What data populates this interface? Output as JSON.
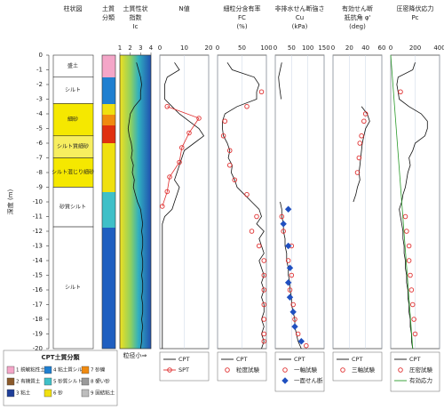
{
  "depth_axis": {
    "label": "深度 (m)",
    "ylim": [
      0,
      -20
    ],
    "yticks": [
      0,
      -1,
      -2,
      -3,
      -4,
      -5,
      -6,
      -7,
      -8,
      -9,
      -10,
      -11,
      -12,
      -13,
      -14,
      -15,
      -16,
      -17,
      -18,
      -19,
      -20
    ]
  },
  "depth": [
    0,
    -0.5,
    -1,
    -1.5,
    -2,
    -2.5,
    -3,
    -3.5,
    -4,
    -4.5,
    -5,
    -5.5,
    -6,
    -6.5,
    -7,
    -7.5,
    -8,
    -8.5,
    -9,
    -9.5,
    -10,
    -10.5,
    -11,
    -11.5,
    -12,
    -12.5,
    -13,
    -13.5,
    -14,
    -14.5,
    -15,
    -15.5,
    -16,
    -16.5,
    -17,
    -17.5,
    -18,
    -18.5,
    -19,
    -19.5,
    -20
  ],
  "column_title": "柱状図",
  "class_title": [
    "土質",
    "分類"
  ],
  "strata": [
    {
      "name": "盛土",
      "top": 0,
      "bottom": -1.5,
      "color": "#ffffff"
    },
    {
      "name": "シルト",
      "top": -1.5,
      "bottom": -3.3,
      "color": "#ffffff"
    },
    {
      "name": "細砂",
      "top": -3.3,
      "bottom": -5.5,
      "color": "#f5e800"
    },
    {
      "name": "シルト質細砂",
      "top": -5.5,
      "bottom": -7,
      "color": "#f7ee60"
    },
    {
      "name": "シルト混じり細砂",
      "top": -7,
      "bottom": -9,
      "color": "#f5e800"
    },
    {
      "name": "砂質シルト",
      "top": -9,
      "bottom": -11.7,
      "color": "#ffffff"
    },
    {
      "name": "シルト",
      "top": -11.7,
      "bottom": -20,
      "color": "#ffffff"
    }
  ],
  "ic_note": "粒径小⇒",
  "soil_legend": {
    "title": "CPT土質分類",
    "items": [
      {
        "label": "1 鋭敏粘性土",
        "color": "#f4a6c8"
      },
      {
        "label": "2 有機質土",
        "color": "#8b5a2b"
      },
      {
        "label": "3 粘土",
        "color": "#1f3f9a"
      },
      {
        "label": "4 粘土質シルト",
        "color": "#1f7fd0"
      },
      {
        "label": "5 砂質シルト",
        "color": "#3fc0c8"
      },
      {
        "label": "6 砂",
        "color": "#f0e010"
      },
      {
        "label": "7 砂礫",
        "color": "#f08a10"
      },
      {
        "label": "8 硬い砂",
        "color": "#9a9a9a"
      },
      {
        "label": "9 固結粘土",
        "color": "#bdbdbd"
      }
    ]
  },
  "chart_data": [
    {
      "type": "line",
      "title": [
        "土質性状",
        "指数",
        "Ic"
      ],
      "xlim": [
        1,
        4
      ],
      "xticks": [
        1,
        2,
        3,
        4
      ],
      "grid": false,
      "background": true,
      "series": [
        {
          "color": "#111111",
          "mode": "line",
          "values": [
            null,
            2.6,
            2.8,
            3.0,
            3.1,
            3.0,
            3.0,
            2.4,
            2.0,
            1.9,
            1.8,
            1.9,
            2.1,
            2.2,
            2.1,
            2.3,
            2.2,
            2.4,
            2.3,
            2.5,
            2.7,
            3.0,
            3.1,
            3.2,
            3.1,
            3.2,
            3.2,
            3.1,
            3.2,
            3.2,
            3.1,
            3.2,
            3.2,
            3.1,
            3.2,
            3.2,
            3.1,
            3.2,
            3.1,
            3.1,
            3.0
          ]
        }
      ]
    },
    {
      "type": "line",
      "title": [
        "N値"
      ],
      "xlim": [
        0,
        20
      ],
      "xticks": [
        0,
        10,
        20
      ],
      "grid": true,
      "series": [
        {
          "name": "CPT",
          "color": "#111111",
          "mode": "line",
          "values": [
            null,
            6,
            8,
            3,
            2,
            2,
            2,
            5,
            8,
            12,
            16,
            18,
            14,
            10,
            9,
            8,
            7,
            6,
            8,
            7,
            6,
            5,
            2,
            1,
            1,
            1,
            1,
            1,
            1,
            1,
            1,
            1,
            1,
            1,
            1,
            1,
            1,
            1,
            1,
            1,
            1
          ]
        },
        {
          "name": "SPT",
          "color": "#e03030",
          "mode": "lines+markers",
          "marker": "circle",
          "depth": [
            -3.5,
            -4.3,
            -5.3,
            -6.3,
            -7.3,
            -8.3,
            -9.3,
            -10.3
          ],
          "values": [
            3,
            16,
            12,
            9,
            8,
            4,
            3,
            1
          ]
        }
      ]
    },
    {
      "type": "line",
      "title": [
        "細粒分含有率",
        "FC",
        "(%)"
      ],
      "xlim": [
        0,
        100
      ],
      "xticks": [
        0,
        50,
        100
      ],
      "grid": true,
      "series": [
        {
          "name": "CPT",
          "color": "#111111",
          "mode": "line",
          "values": [
            null,
            20,
            30,
            75,
            85,
            80,
            80,
            40,
            15,
            10,
            10,
            12,
            20,
            25,
            22,
            30,
            28,
            35,
            40,
            55,
            70,
            85,
            90,
            80,
            95,
            85,
            90,
            95,
            85,
            90,
            95,
            90,
            95,
            90,
            95,
            95,
            90,
            95,
            90,
            95,
            90
          ]
        },
        {
          "name": "粒度試験",
          "color": "#e03030",
          "mode": "markers",
          "marker": "circle",
          "depth": [
            -2.5,
            -3.5,
            -4.5,
            -5.5,
            -6.5,
            -7.5,
            -8.5,
            -9.5,
            -11,
            -12,
            -13,
            -14,
            -15,
            -16,
            -17,
            -18,
            -19,
            -19.5
          ],
          "values": [
            90,
            60,
            15,
            12,
            25,
            25,
            35,
            60,
            80,
            70,
            85,
            95,
            95,
            95,
            95,
            95,
            95,
            95
          ]
        }
      ]
    },
    {
      "type": "line",
      "title": [
        "非排水せん断強さ",
        "Cu",
        "(kPa)"
      ],
      "xlim": [
        0,
        150
      ],
      "xticks": [
        0,
        50,
        100,
        150
      ],
      "grid": true,
      "series": [
        {
          "name": "CPT",
          "color": "#111111",
          "mode": "line",
          "values": [
            null,
            20,
            15,
            10,
            12,
            15,
            18,
            null,
            null,
            null,
            null,
            null,
            null,
            null,
            null,
            null,
            null,
            null,
            null,
            null,
            15,
            20,
            20,
            25,
            25,
            30,
            30,
            35,
            35,
            40,
            40,
            45,
            45,
            50,
            50,
            55,
            60,
            60,
            65,
            70,
            80
          ]
        },
        {
          "name": "一軸試験",
          "color": "#e03030",
          "mode": "markers",
          "marker": "circle",
          "depth": [
            -11,
            -12,
            -13,
            -14,
            -15,
            -16,
            -17,
            -18,
            -19,
            -19.8
          ],
          "values": [
            20,
            25,
            50,
            40,
            50,
            45,
            55,
            60,
            70,
            95
          ]
        },
        {
          "name": "一面せん断",
          "color": "#2050c0",
          "mode": "markers",
          "marker": "diamond",
          "depth": [
            -10.5,
            -11.5,
            -13,
            -14.5,
            -15.5,
            -16.5,
            -17.5,
            -18.5,
            -19.5
          ],
          "values": [
            40,
            25,
            40,
            45,
            40,
            45,
            55,
            60,
            80
          ]
        }
      ]
    },
    {
      "type": "line",
      "title": [
        "有効せん断",
        "抵抗角 φ'",
        "(deg)"
      ],
      "xlim": [
        0,
        60
      ],
      "xticks": [
        0,
        20,
        40,
        60
      ],
      "grid": true,
      "series": [
        {
          "name": "CPT",
          "color": "#111111",
          "mode": "line",
          "values": [
            null,
            null,
            null,
            null,
            null,
            null,
            null,
            35,
            42,
            45,
            40,
            38,
            36,
            35,
            34,
            33,
            32,
            33,
            30,
            28,
            25,
            null,
            null,
            null,
            null,
            null,
            null,
            null,
            null,
            null,
            null,
            null,
            null,
            null,
            null,
            null,
            null,
            null,
            null,
            null,
            null
          ]
        },
        {
          "name": "三軸試験",
          "color": "#e03030",
          "mode": "markers",
          "marker": "circle",
          "depth": [
            -4,
            -4.5,
            -5.5,
            -6,
            -7,
            -8
          ],
          "values": [
            40,
            38,
            35,
            33,
            32,
            30
          ]
        }
      ]
    },
    {
      "type": "line",
      "title": [
        "圧密降伏応力",
        "Pc"
      ],
      "xlim": [
        0,
        400
      ],
      "xticks": [
        0,
        200,
        400
      ],
      "grid": true,
      "series": [
        {
          "name": "CPT",
          "color": "#111111",
          "mode": "line",
          "values": [
            null,
            200,
            180,
            60,
            50,
            60,
            70,
            150,
            250,
            300,
            300,
            280,
            200,
            180,
            150,
            160,
            140,
            130,
            120,
            100,
            90,
            70,
            80,
            90,
            100,
            100,
            110,
            110,
            120,
            120,
            130,
            130,
            140,
            140,
            150,
            150,
            160,
            160,
            170,
            170,
            180
          ]
        },
        {
          "name": "圧密試験",
          "color": "#e03030",
          "mode": "markers",
          "marker": "circle",
          "depth": [
            -2.5,
            -11,
            -12,
            -13,
            -14,
            -15,
            -16,
            -17,
            -18,
            -19
          ],
          "values": [
            80,
            120,
            130,
            150,
            150,
            160,
            170,
            180,
            190,
            200
          ]
        },
        {
          "name": "有効応力",
          "color": "#2a9a2a",
          "mode": "line",
          "depth": [
            0,
            -20
          ],
          "values": [
            0,
            180
          ]
        }
      ]
    }
  ]
}
